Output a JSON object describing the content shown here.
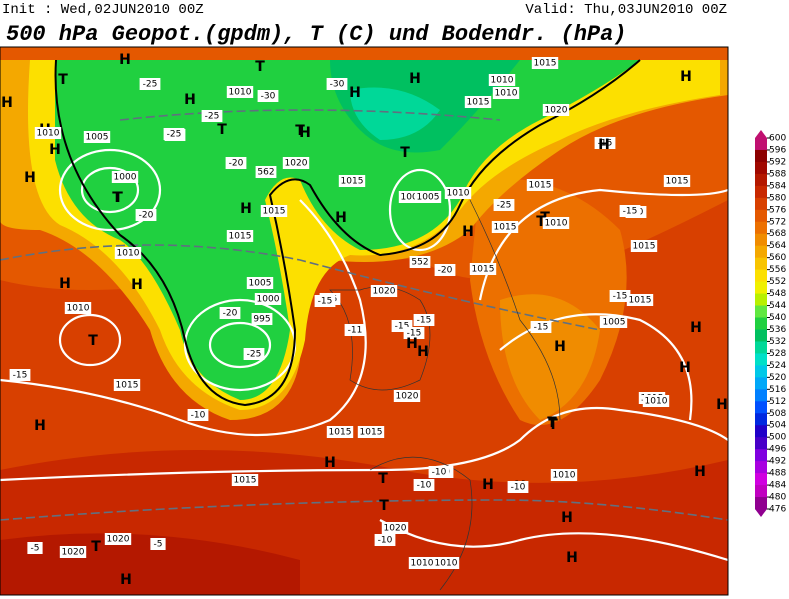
{
  "header": {
    "init": "Init : Wed,02JUN2010 00Z",
    "valid": "Valid: Thu,03JUN2010 00Z",
    "title": "500 hPa Geopot.(gpdm), T (C) und Bodendr. (hPa)"
  },
  "colorbar": {
    "ticks": [
      600,
      596,
      592,
      588,
      584,
      580,
      576,
      572,
      568,
      564,
      560,
      556,
      552,
      548,
      544,
      540,
      536,
      532,
      528,
      524,
      520,
      516,
      512,
      508,
      504,
      500,
      496,
      492,
      488,
      484,
      480,
      476
    ],
    "colors": [
      "#c01070",
      "#8c0000",
      "#a00800",
      "#b41800",
      "#c82800",
      "#d84000",
      "#e45800",
      "#ec7000",
      "#f08c00",
      "#f4a800",
      "#f8c400",
      "#fce000",
      "#f0f000",
      "#b8f000",
      "#60e840",
      "#20d040",
      "#00c060",
      "#00d898",
      "#00e0c8",
      "#00c8e8",
      "#00a8f8",
      "#0080ff",
      "#0050ff",
      "#0028e0",
      "#2000c8",
      "#4800c8",
      "#8000e0",
      "#a800e0",
      "#d000e0",
      "#c000c0",
      "#900090"
    ]
  },
  "map": {
    "labels": [
      "H",
      "T",
      "H",
      "H",
      "H",
      "T",
      "H",
      "1010",
      "1005",
      "1000",
      "T",
      "H",
      "-25",
      "-25",
      "-20",
      "1010",
      "-30",
      "H",
      "T",
      "T",
      "-30",
      "1010",
      "1015",
      "1020",
      "H",
      "-25",
      "1005",
      "T",
      "1015",
      "H",
      "-20",
      "1020",
      "562",
      "1015",
      "H",
      "H",
      "1015",
      "1015",
      "1005",
      "1010",
      "-25",
      "T",
      "H",
      "1020",
      "-15",
      "1015",
      "1005",
      "H",
      "T",
      "995",
      "-20",
      "-25",
      "1000",
      "1010",
      "1015",
      "-15",
      "-11",
      "-15",
      "-15",
      "H",
      "1020",
      "-10",
      "1015",
      "H",
      "-15",
      "T",
      "1010",
      "-15",
      "H",
      "1015",
      "-20",
      "1015",
      "H",
      "T",
      "1005",
      "-15",
      "1015",
      "H",
      "1010",
      "H",
      "T",
      "-10",
      "-10",
      "H",
      "-10",
      "1010",
      "T",
      "H",
      "H",
      "1010",
      "1015",
      "1020",
      "1015",
      "-10",
      "-5",
      "1020",
      "T",
      "1020",
      "-5",
      "H",
      "H",
      "H",
      "T",
      "-15",
      "1015",
      "552",
      "-20",
      "1010",
      "1010",
      "-25",
      "1015",
      "-15",
      "T",
      "H",
      "1005",
      "H",
      "-15",
      "-10",
      "H",
      "1010",
      "1015",
      "H",
      "H"
    ]
  }
}
